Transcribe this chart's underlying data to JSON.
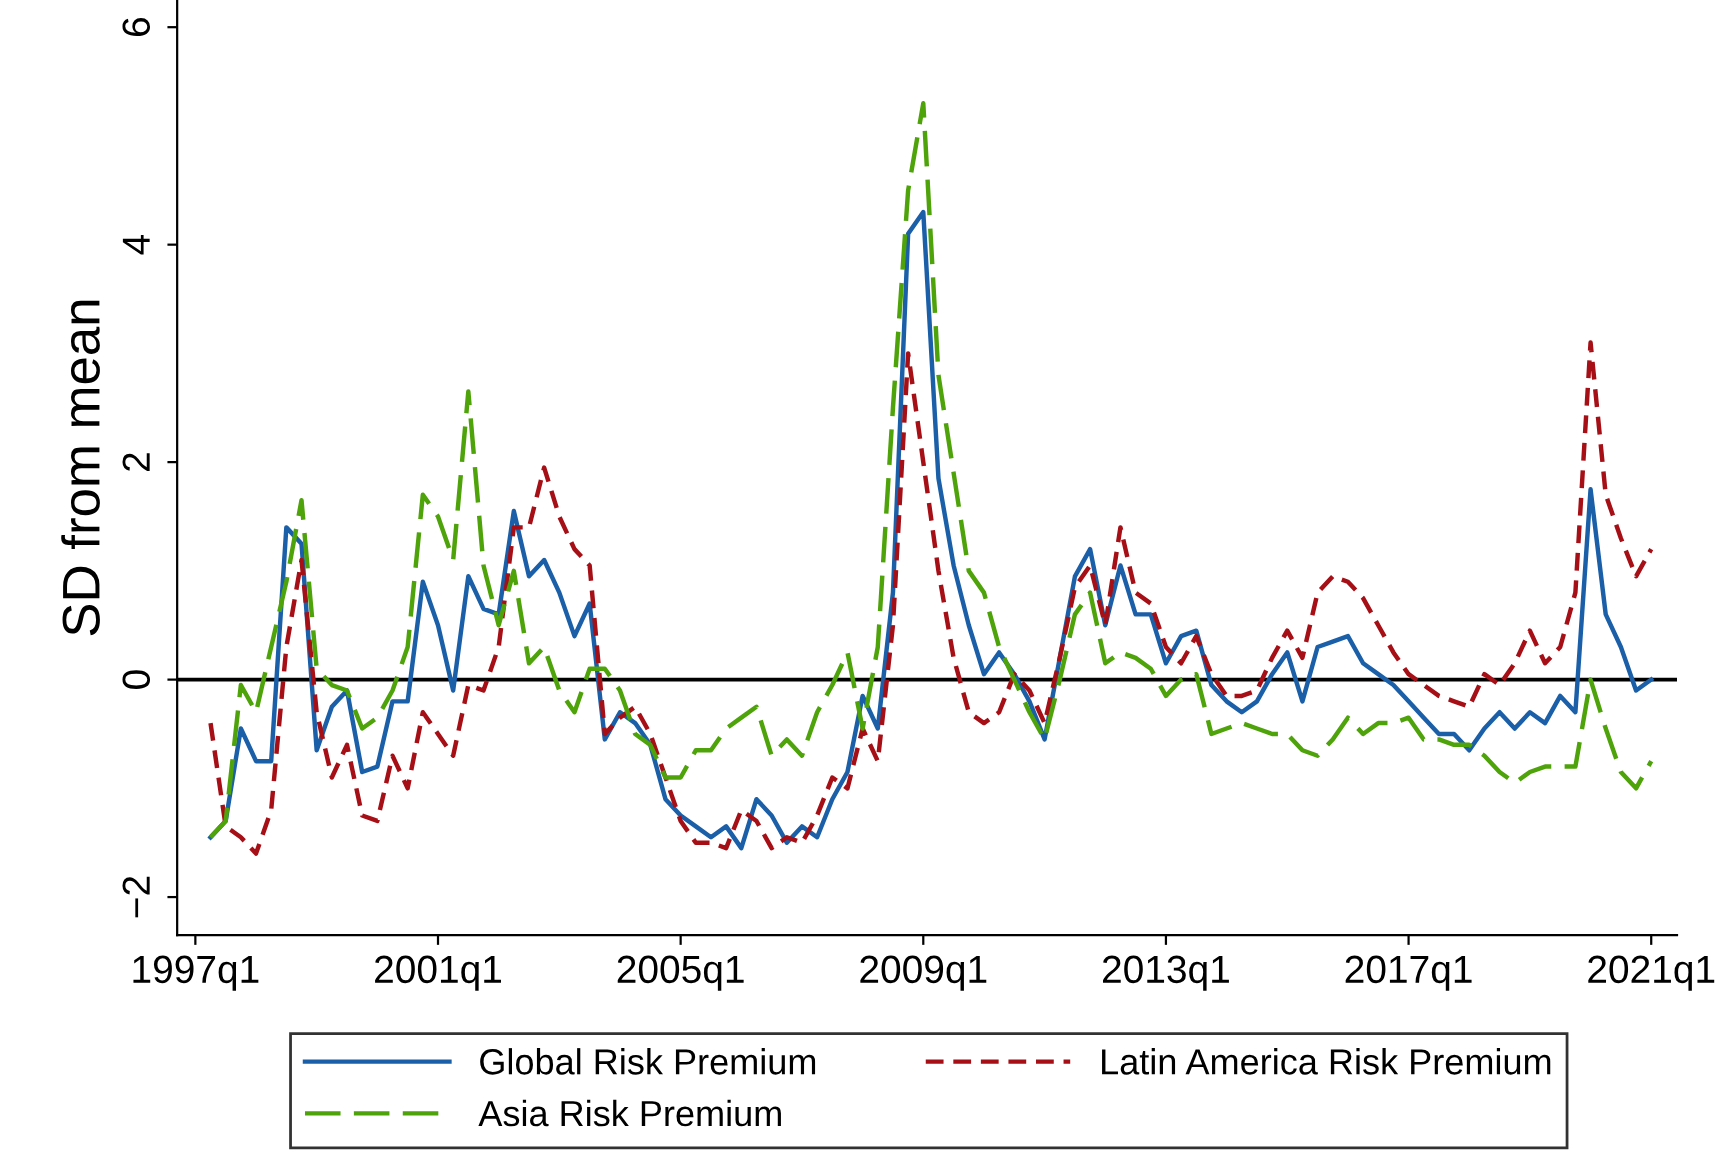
{
  "chart_data": {
    "type": "line",
    "ylabel": "SD from mean",
    "categories": [
      "1997q1",
      null,
      null,
      null,
      null,
      null,
      null,
      null,
      null,
      null,
      null,
      null,
      null,
      null,
      null,
      null,
      "2001q1",
      null,
      null,
      null,
      null,
      null,
      null,
      null,
      null,
      null,
      null,
      null,
      null,
      null,
      null,
      null,
      "2005q1",
      null,
      null,
      null,
      null,
      null,
      null,
      null,
      null,
      null,
      null,
      null,
      null,
      null,
      null,
      null,
      "2009q1",
      null,
      null,
      null,
      null,
      null,
      null,
      null,
      null,
      null,
      null,
      null,
      null,
      null,
      null,
      null,
      "2013q1",
      null,
      null,
      null,
      null,
      null,
      null,
      null,
      null,
      null,
      null,
      null,
      null,
      null,
      null,
      null,
      "2017q1",
      null,
      null,
      null,
      null,
      null,
      null,
      null,
      null,
      null,
      null,
      null,
      null,
      null,
      null,
      null,
      "2021q1"
    ],
    "series": [
      {
        "name": "Global Risk Premium",
        "color": "#1a5fa8",
        "line_style": "solid",
        "values": [
          null,
          -1.45,
          -1.3,
          -0.45,
          -0.75,
          -0.75,
          1.4,
          1.25,
          -0.65,
          -0.25,
          -0.1,
          -0.85,
          -0.8,
          -0.2,
          -0.2,
          0.9,
          0.5,
          -0.1,
          0.95,
          0.65,
          0.6,
          1.55,
          0.95,
          1.1,
          0.8,
          0.4,
          0.7,
          -0.55,
          -0.3,
          -0.4,
          -0.6,
          -1.1,
          -1.25,
          -1.35,
          -1.45,
          -1.35,
          -1.55,
          -1.1,
          -1.25,
          -1.5,
          -1.35,
          -1.45,
          -1.1,
          -0.85,
          -0.15,
          -0.45,
          0.8,
          4.1,
          4.3,
          1.85,
          1.05,
          0.5,
          0.05,
          0.25,
          0.05,
          -0.2,
          -0.55,
          0.2,
          0.95,
          1.2,
          0.5,
          1.05,
          0.6,
          0.6,
          0.15,
          0.4,
          0.45,
          -0.05,
          -0.2,
          -0.3,
          -0.2,
          0.05,
          0.25,
          -0.2,
          0.3,
          0.35,
          0.4,
          0.15,
          0.05,
          -0.05,
          -0.2,
          -0.35,
          -0.5,
          -0.5,
          -0.65,
          -0.45,
          -0.3,
          -0.45,
          -0.3,
          -0.4,
          -0.15,
          -0.3,
          1.75,
          0.6,
          0.3,
          -0.1,
          0.0
        ]
      },
      {
        "name": "Latin America Risk Premium",
        "color": "#a50f15",
        "line_style": "dashed",
        "values": [
          null,
          -0.4,
          -1.35,
          -1.45,
          -1.6,
          -1.2,
          0.3,
          1.1,
          -0.3,
          -0.9,
          -0.6,
          -1.25,
          -1.3,
          -0.7,
          -1.0,
          -0.3,
          -0.5,
          -0.7,
          -0.05,
          -0.1,
          0.3,
          1.4,
          1.4,
          1.95,
          1.5,
          1.2,
          1.05,
          -0.5,
          -0.35,
          -0.25,
          -0.5,
          -0.9,
          -1.3,
          -1.5,
          -1.5,
          -1.55,
          -1.2,
          -1.3,
          -1.55,
          -1.45,
          -1.5,
          -1.25,
          -0.9,
          -1.0,
          -0.45,
          -0.75,
          0.5,
          3.0,
          2.0,
          1.0,
          0.2,
          -0.3,
          -0.4,
          -0.3,
          0.05,
          -0.1,
          -0.4,
          0.2,
          0.85,
          1.05,
          0.5,
          1.4,
          0.8,
          0.7,
          0.3,
          0.15,
          0.4,
          0.05,
          -0.15,
          -0.15,
          -0.1,
          0.2,
          0.45,
          0.2,
          0.8,
          0.95,
          0.9,
          0.75,
          0.5,
          0.25,
          0.05,
          -0.05,
          -0.15,
          -0.2,
          -0.25,
          0.05,
          -0.05,
          0.15,
          0.45,
          0.15,
          0.3,
          0.8,
          3.1,
          1.7,
          1.3,
          0.95,
          1.2
        ]
      },
      {
        "name": "Asia Risk Premium",
        "color": "#4fa30a",
        "line_style": "dashed",
        "values": [
          null,
          -1.45,
          -1.3,
          -0.05,
          -0.3,
          0.3,
          0.9,
          1.65,
          0.1,
          -0.05,
          -0.1,
          -0.45,
          -0.35,
          -0.1,
          0.3,
          1.7,
          1.5,
          1.1,
          2.65,
          1.05,
          0.5,
          1.0,
          0.15,
          0.3,
          -0.1,
          -0.3,
          0.1,
          0.1,
          -0.1,
          -0.5,
          -0.6,
          -0.9,
          -0.9,
          -0.65,
          -0.65,
          -0.45,
          -0.35,
          -0.25,
          -0.7,
          -0.55,
          -0.7,
          -0.3,
          -0.05,
          0.25,
          -0.45,
          0.3,
          2.5,
          4.5,
          5.3,
          2.8,
          1.9,
          1.0,
          0.8,
          0.3,
          0.0,
          -0.3,
          -0.55,
          0.0,
          0.6,
          0.8,
          0.15,
          0.25,
          0.2,
          0.1,
          -0.15,
          0.0,
          0.05,
          -0.5,
          -0.45,
          -0.4,
          -0.45,
          -0.5,
          -0.5,
          -0.65,
          -0.7,
          -0.55,
          -0.35,
          -0.5,
          -0.4,
          -0.4,
          -0.35,
          -0.55,
          -0.55,
          -0.6,
          -0.6,
          -0.7,
          -0.85,
          -0.95,
          -0.85,
          -0.8,
          -0.8,
          -0.8,
          0.0,
          -0.45,
          -0.85,
          -1.0,
          -0.75
        ]
      }
    ],
    "ylim": [
      -2.35,
      6.25
    ],
    "yticks": [
      {
        "value": -2,
        "label": "−2"
      },
      0,
      2,
      4,
      6
    ],
    "ref_lines": [
      {
        "axis": "y",
        "value": 0,
        "color": "#000000",
        "line_style": "solid"
      }
    ],
    "legend": "bottom"
  }
}
